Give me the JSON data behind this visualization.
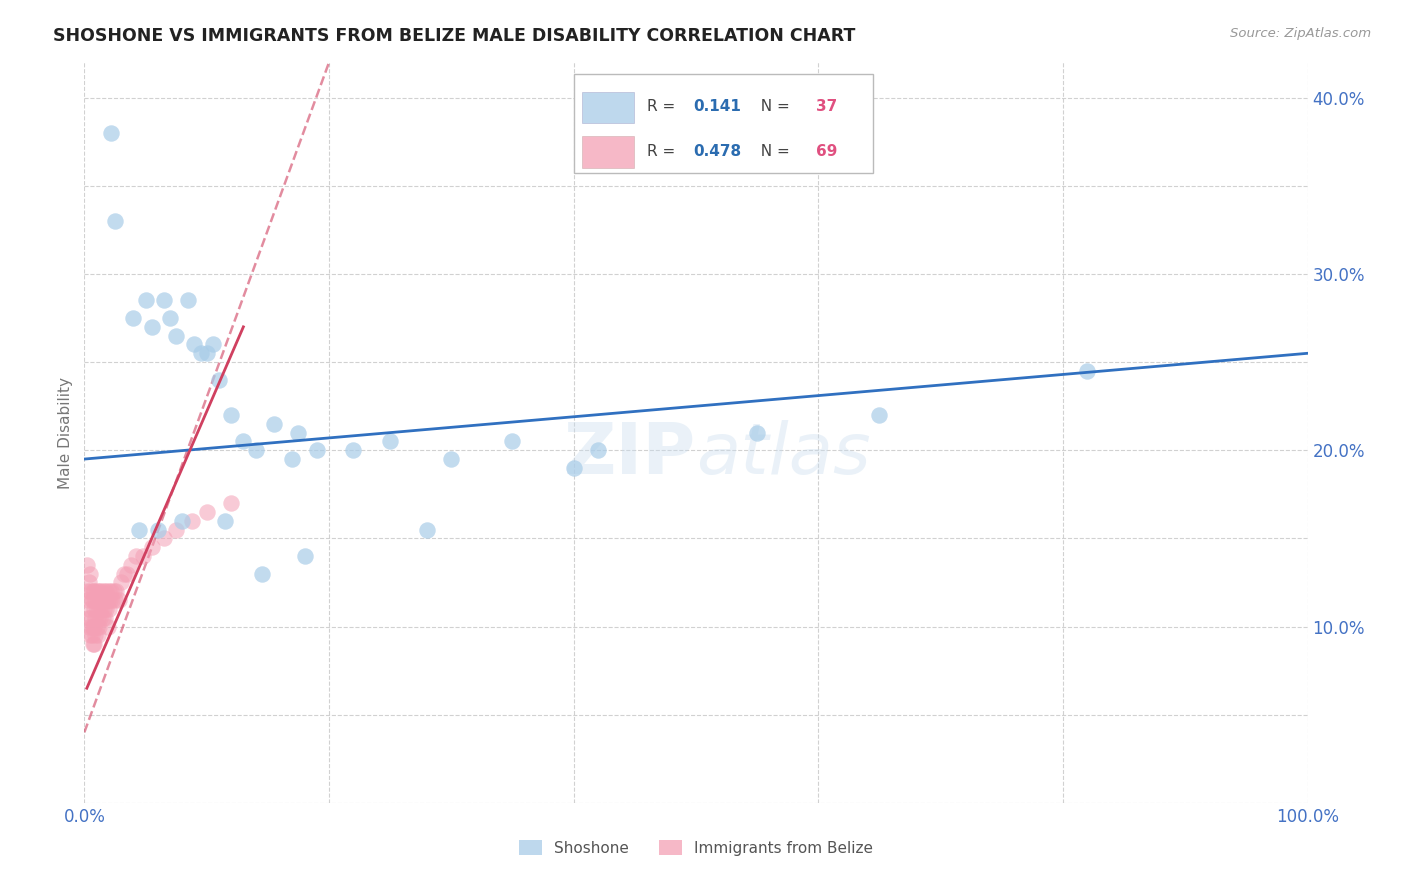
{
  "title": "SHOSHONE VS IMMIGRANTS FROM BELIZE MALE DISABILITY CORRELATION CHART",
  "source": "Source: ZipAtlas.com",
  "ylabel": "Male Disability",
  "xlim": [
    0.0,
    1.0
  ],
  "ylim": [
    0.0,
    0.42
  ],
  "shoshone_color": "#a8cce8",
  "belize_color": "#f4a0b5",
  "trendline_blue": "#3070c0",
  "trendline_pink": "#d04060",
  "shoshone_R": 0.141,
  "shoshone_N": 37,
  "belize_R": 0.478,
  "belize_N": 69,
  "legend_label_1": "Shoshone",
  "legend_label_2": "Immigrants from Belize",
  "shoshone_x": [
    0.022,
    0.025,
    0.04,
    0.05,
    0.055,
    0.065,
    0.07,
    0.075,
    0.085,
    0.09,
    0.095,
    0.1,
    0.105,
    0.11,
    0.12,
    0.13,
    0.14,
    0.155,
    0.17,
    0.175,
    0.19,
    0.22,
    0.25,
    0.3,
    0.35,
    0.4,
    0.42,
    0.55,
    0.65,
    0.82,
    0.045,
    0.06,
    0.08,
    0.115,
    0.145,
    0.18,
    0.28
  ],
  "shoshone_y": [
    0.38,
    0.33,
    0.275,
    0.285,
    0.27,
    0.285,
    0.275,
    0.265,
    0.285,
    0.26,
    0.255,
    0.255,
    0.26,
    0.24,
    0.22,
    0.205,
    0.2,
    0.215,
    0.195,
    0.21,
    0.2,
    0.2,
    0.205,
    0.195,
    0.205,
    0.19,
    0.2,
    0.21,
    0.22,
    0.245,
    0.155,
    0.155,
    0.16,
    0.16,
    0.13,
    0.14,
    0.155
  ],
  "belize_x": [
    0.002,
    0.002,
    0.003,
    0.003,
    0.004,
    0.004,
    0.004,
    0.005,
    0.005,
    0.005,
    0.005,
    0.006,
    0.006,
    0.006,
    0.007,
    0.007,
    0.007,
    0.007,
    0.008,
    0.008,
    0.008,
    0.008,
    0.009,
    0.009,
    0.009,
    0.01,
    0.01,
    0.01,
    0.011,
    0.011,
    0.011,
    0.012,
    0.012,
    0.012,
    0.013,
    0.013,
    0.014,
    0.014,
    0.015,
    0.015,
    0.016,
    0.016,
    0.017,
    0.017,
    0.018,
    0.018,
    0.019,
    0.019,
    0.02,
    0.02,
    0.021,
    0.022,
    0.023,
    0.024,
    0.025,
    0.026,
    0.028,
    0.03,
    0.032,
    0.035,
    0.038,
    0.042,
    0.048,
    0.055,
    0.065,
    0.075,
    0.088,
    0.1,
    0.12
  ],
  "belize_y": [
    0.135,
    0.12,
    0.115,
    0.105,
    0.125,
    0.11,
    0.1,
    0.12,
    0.13,
    0.105,
    0.095,
    0.115,
    0.1,
    0.095,
    0.12,
    0.115,
    0.1,
    0.09,
    0.12,
    0.11,
    0.1,
    0.09,
    0.115,
    0.105,
    0.095,
    0.12,
    0.11,
    0.1,
    0.115,
    0.105,
    0.095,
    0.12,
    0.11,
    0.1,
    0.115,
    0.105,
    0.12,
    0.11,
    0.115,
    0.105,
    0.12,
    0.11,
    0.115,
    0.105,
    0.12,
    0.11,
    0.115,
    0.1,
    0.12,
    0.11,
    0.115,
    0.12,
    0.115,
    0.12,
    0.115,
    0.12,
    0.115,
    0.125,
    0.13,
    0.13,
    0.135,
    0.14,
    0.14,
    0.145,
    0.15,
    0.155,
    0.16,
    0.165,
    0.17
  ],
  "background_color": "#ffffff",
  "grid_color": "#cccccc",
  "watermark": "ZIPAtlas",
  "title_color": "#222222",
  "axis_tick_color": "#4472c4",
  "legend_R_color": "#2b6cb0",
  "legend_N_color": "#e05080",
  "ylabel_color": "#777777"
}
